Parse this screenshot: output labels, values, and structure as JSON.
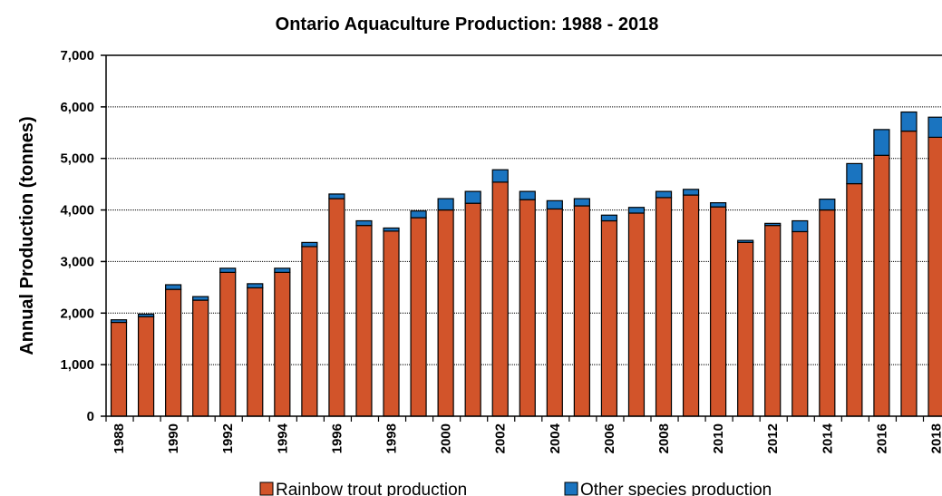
{
  "chart_data": {
    "type": "bar",
    "stacked": true,
    "title": "Ontario Aquaculture Production: 1988 - 2018",
    "xlabel": "",
    "ylabel": "Annual Production (tonnes)",
    "ylim": [
      0,
      7000
    ],
    "yticks": [
      "0",
      "1,000",
      "2,000",
      "3,000",
      "4,000",
      "5,000",
      "6,000",
      "7,000"
    ],
    "ytick_values": [
      0,
      1000,
      2000,
      3000,
      4000,
      5000,
      6000,
      7000
    ],
    "grid": true,
    "legend_position": "bottom",
    "categories": [
      "1988",
      "1989",
      "1990",
      "1991",
      "1992",
      "1993",
      "1994",
      "1995",
      "1996",
      "1997",
      "1998",
      "1999",
      "2000",
      "2001",
      "2002",
      "2003",
      "2004",
      "2005",
      "2006",
      "2007",
      "2008",
      "2009",
      "2010",
      "2011",
      "2012",
      "2013",
      "2014",
      "2015",
      "2016",
      "2017",
      "2018"
    ],
    "xtick_labels": [
      "1988",
      "",
      "1990",
      "",
      "1992",
      "",
      "1994",
      "",
      "1996",
      "",
      "1998",
      "",
      "2000",
      "",
      "2002",
      "",
      "2004",
      "",
      "2006",
      "",
      "2008",
      "",
      "2010",
      "",
      "2012",
      "",
      "2014",
      "",
      "2016",
      "",
      "2018"
    ],
    "series": [
      {
        "name": "Rainbow trout production",
        "color": "#d2542a",
        "values": [
          1820,
          1930,
          2460,
          2250,
          2790,
          2490,
          2790,
          3290,
          4220,
          3700,
          3590,
          3850,
          4000,
          4130,
          4540,
          4200,
          4020,
          4080,
          3790,
          3940,
          4240,
          4290,
          4060,
          3370,
          3700,
          3580,
          4000,
          4510,
          5060,
          5530,
          5410
        ]
      },
      {
        "name": "Other species production",
        "color": "#1a74c0",
        "values": [
          50,
          50,
          90,
          70,
          80,
          80,
          80,
          80,
          90,
          90,
          60,
          130,
          220,
          230,
          240,
          160,
          160,
          140,
          110,
          110,
          120,
          110,
          80,
          40,
          40,
          210,
          210,
          390,
          500,
          370,
          390
        ]
      }
    ]
  }
}
